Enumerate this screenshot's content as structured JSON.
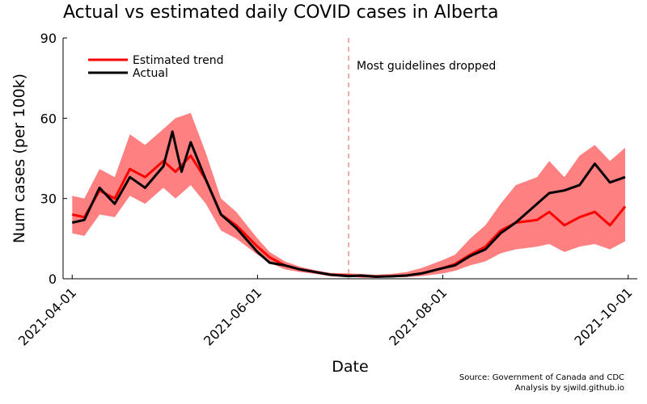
{
  "chart_data": {
    "type": "line",
    "title": "Actual vs estimated daily COVID cases in Alberta",
    "xlabel": "Date",
    "ylabel": "Num cases (per 100k)",
    "xlim": [
      "2021-03-29",
      "2021-10-04"
    ],
    "ylim": [
      0,
      90
    ],
    "x_ticks": [
      "2021-04-01",
      "2021-06-01",
      "2021-08-01",
      "2021-10-01"
    ],
    "y_ticks": [
      0,
      30,
      60,
      90
    ],
    "grid": false,
    "legend": "top-left",
    "vline": {
      "x": "2021-07-01",
      "label": "Most guidelines dropped",
      "color": "#f4a6a6"
    },
    "colors": {
      "estimate": "#ff0000",
      "band": "#ff8080",
      "actual": "#000000"
    },
    "source_lines": [
      "Source: Government of Canada and CDC",
      "Analysis by sjwild.github.io"
    ],
    "series": [
      {
        "name": "Estimated trend",
        "x": [
          "2021-04-01",
          "2021-04-05",
          "2021-04-10",
          "2021-04-15",
          "2021-04-20",
          "2021-04-25",
          "2021-05-01",
          "2021-05-05",
          "2021-05-10",
          "2021-05-15",
          "2021-05-20",
          "2021-05-25",
          "2021-06-01",
          "2021-06-05",
          "2021-06-10",
          "2021-06-15",
          "2021-06-20",
          "2021-06-25",
          "2021-07-01",
          "2021-07-05",
          "2021-07-10",
          "2021-07-15",
          "2021-07-20",
          "2021-07-25",
          "2021-08-01",
          "2021-08-05",
          "2021-08-10",
          "2021-08-15",
          "2021-08-20",
          "2021-08-25",
          "2021-09-01",
          "2021-09-05",
          "2021-09-10",
          "2021-09-15",
          "2021-09-20",
          "2021-09-25",
          "2021-09-30"
        ],
        "y": [
          24,
          23,
          33,
          30,
          41,
          38,
          44,
          40,
          46,
          37,
          24,
          20,
          12,
          8,
          5,
          3.5,
          2.5,
          1.5,
          1.2,
          1.0,
          0.8,
          1.0,
          1.2,
          2.0,
          4.0,
          5.5,
          9.0,
          12,
          18,
          21,
          22,
          25,
          20,
          23,
          25,
          20,
          27
        ],
        "upper": [
          31,
          30,
          41,
          38,
          54,
          50,
          56,
          60,
          62,
          47,
          30,
          25,
          15,
          10,
          6.5,
          4.5,
          3.2,
          2.2,
          2.0,
          1.8,
          1.5,
          1.8,
          2.5,
          4.0,
          7.0,
          9.0,
          15,
          20,
          28,
          35,
          38,
          44,
          38,
          46,
          50,
          44,
          49
        ],
        "lower": [
          17,
          16,
          24,
          23,
          31,
          28,
          34,
          30,
          35,
          28,
          18,
          15,
          9,
          6,
          3.5,
          2.5,
          1.8,
          0.9,
          0.6,
          0.5,
          0.4,
          0.5,
          0.6,
          1.0,
          2.0,
          3.0,
          5.0,
          6.5,
          9.5,
          11,
          12,
          13,
          10,
          12,
          13,
          11,
          14
        ]
      },
      {
        "name": "Actual",
        "x": [
          "2021-04-01",
          "2021-04-05",
          "2021-04-10",
          "2021-04-15",
          "2021-04-20",
          "2021-04-25",
          "2021-05-01",
          "2021-05-04",
          "2021-05-07",
          "2021-05-10",
          "2021-05-15",
          "2021-05-20",
          "2021-05-25",
          "2021-06-01",
          "2021-06-05",
          "2021-06-10",
          "2021-06-15",
          "2021-06-20",
          "2021-06-25",
          "2021-07-01",
          "2021-07-05",
          "2021-07-10",
          "2021-07-15",
          "2021-07-20",
          "2021-07-25",
          "2021-08-01",
          "2021-08-05",
          "2021-08-10",
          "2021-08-15",
          "2021-08-20",
          "2021-08-25",
          "2021-09-01",
          "2021-09-05",
          "2021-09-10",
          "2021-09-15",
          "2021-09-20",
          "2021-09-25",
          "2021-09-30"
        ],
        "y": [
          21,
          22,
          34,
          28,
          38,
          34,
          42,
          55,
          40,
          51,
          37,
          24,
          19,
          10,
          6,
          5,
          3.5,
          2.5,
          1.5,
          1.0,
          1.2,
          0.8,
          0.9,
          1.2,
          2.0,
          4.0,
          5.0,
          8.5,
          11,
          17,
          21,
          28,
          32,
          33,
          35,
          43,
          36,
          38
        ]
      }
    ]
  }
}
